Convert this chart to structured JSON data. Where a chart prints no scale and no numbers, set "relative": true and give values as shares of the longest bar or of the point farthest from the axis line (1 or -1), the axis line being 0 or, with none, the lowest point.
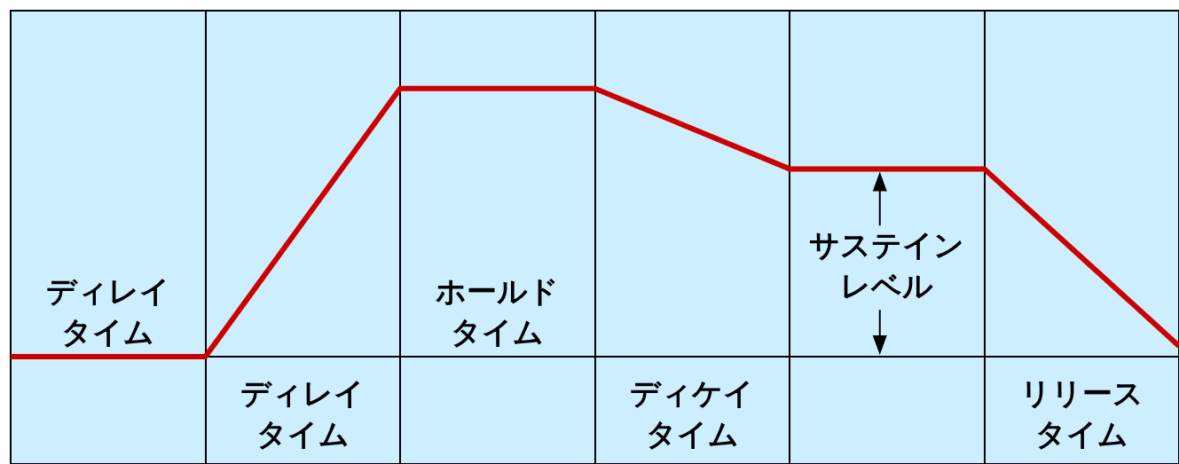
{
  "chart_data": {
    "type": "line",
    "relative": true,
    "categories": [
      null,
      null,
      null,
      null,
      null,
      null,
      null
    ],
    "series": [
      {
        "color": "#cc0000",
        "values": [
          0,
          0,
          1,
          1,
          0.7,
          0.7,
          0.04
        ]
      }
    ],
    "annotations": [
      "ディレイタイム",
      "ディレイタイム",
      "ホールドタイム",
      "ディケイタイム",
      "サステインレベル",
      "リリースタイム"
    ],
    "grid": "x",
    "marker": "none",
    "line_style": "solid"
  }
}
